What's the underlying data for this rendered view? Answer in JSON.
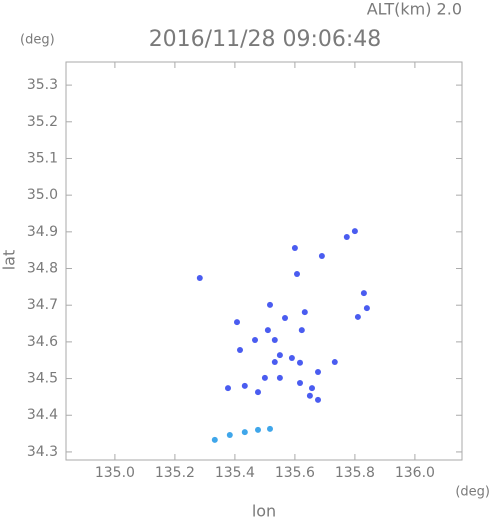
{
  "chart_data": {
    "type": "scatter",
    "title": "2016/11/28 09:06:48",
    "subtitle": "ALT(km) 2.0",
    "xlabel": "lon",
    "ylabel": "lat",
    "xunit": "(deg)",
    "yunit": "(deg)",
    "xlim": [
      134.837,
      136.157
    ],
    "ylim": [
      34.278,
      35.363
    ],
    "xticks": [
      {
        "value": 135,
        "label": "135.0"
      },
      135.2,
      135.4,
      135.6,
      135.8,
      {
        "value": 136,
        "label": "136.0"
      }
    ],
    "yticks": [
      34.3,
      34.4,
      34.5,
      34.6,
      34.7,
      34.8,
      34.9,
      {
        "value": 35,
        "label": "35.0"
      },
      35.1,
      35.2,
      35.3
    ],
    "series": [
      {
        "color": "#4a5cf0",
        "x": [
          135.283,
          135.6,
          135.69,
          135.773,
          135.8,
          135.607,
          135.83,
          135.84,
          135.81,
          135.407,
          135.517,
          135.567,
          135.633,
          135.623,
          135.51,
          135.533,
          135.467,
          135.55,
          135.59,
          135.617,
          135.533,
          135.5,
          135.55,
          135.617,
          135.657,
          135.677,
          135.65,
          135.677,
          135.377,
          135.433,
          135.477,
          135.733,
          135.417
        ],
        "values": [
          34.774,
          34.856,
          34.834,
          34.886,
          34.902,
          34.785,
          34.733,
          34.692,
          34.668,
          34.654,
          34.701,
          34.665,
          34.681,
          34.632,
          34.632,
          34.605,
          34.605,
          34.564,
          34.556,
          34.543,
          34.545,
          34.502,
          34.502,
          34.488,
          34.474,
          34.518,
          34.453,
          34.442,
          34.474,
          34.48,
          34.463,
          34.545,
          34.578
        ]
      },
      {
        "color": "#3fa6ea",
        "x": [
          135.333,
          135.383,
          135.433,
          135.477,
          135.517
        ],
        "values": [
          34.333,
          34.346,
          34.354,
          34.36,
          34.363
        ]
      }
    ]
  }
}
